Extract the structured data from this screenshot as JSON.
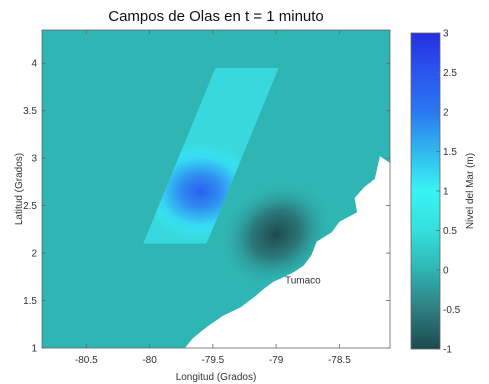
{
  "chart_data": {
    "type": "heatmap",
    "title": "Campos de Olas en t =  1 minuto",
    "xlabel": "Longitud (Grados)",
    "ylabel": "Latitud (Grados)",
    "xlim": [
      -80.85,
      -78.1
    ],
    "ylim": [
      1,
      4.35
    ],
    "x_ticks": [
      -80.5,
      -80,
      -79.5,
      -79,
      -78.5
    ],
    "x_tick_labels": [
      "-80.5",
      "-80",
      "-79.5",
      "-79",
      "-78.5"
    ],
    "y_ticks": [
      1,
      1.5,
      2,
      2.5,
      3,
      3.5,
      4
    ],
    "y_tick_labels": [
      "1",
      "1.5",
      "2",
      "2.5",
      "3",
      "3.5",
      "4"
    ],
    "annotations": [
      {
        "text": "Tumaco",
        "x": -78.93,
        "y": 1.68
      }
    ],
    "colorbar": {
      "label": "Nivel del Mar (m)",
      "range": [
        -1,
        3
      ],
      "ticks": [
        -1,
        -0.5,
        0,
        0.5,
        1,
        1.5,
        2,
        2.5,
        3
      ],
      "tick_labels": [
        "-1",
        "-0.5",
        "0",
        "0.5",
        "1",
        "1.5",
        "2",
        "2.5",
        "3"
      ],
      "colors": [
        "#1c4a4f",
        "#2f7d80",
        "#2fb5b3",
        "#33e0dc",
        "#38f4f4",
        "#30b8ee",
        "#2a78f0",
        "#2a55ef",
        "#2430e0"
      ]
    },
    "features": {
      "disturbed_band": [
        [
          -80.05,
          2.1
        ],
        [
          -79.55,
          2.1
        ],
        [
          -78.98,
          3.95
        ],
        [
          -79.48,
          3.95
        ]
      ],
      "coastline": [
        [
          -78.1,
          1.0
        ],
        [
          -78.1,
          2.95
        ],
        [
          -78.18,
          3.02
        ],
        [
          -78.22,
          2.78
        ],
        [
          -78.3,
          2.7
        ],
        [
          -78.38,
          2.58
        ],
        [
          -78.36,
          2.43
        ],
        [
          -78.5,
          2.33
        ],
        [
          -78.56,
          2.22
        ],
        [
          -78.68,
          2.12
        ],
        [
          -78.72,
          1.98
        ],
        [
          -78.78,
          1.87
        ],
        [
          -78.86,
          1.8
        ],
        [
          -78.95,
          1.74
        ],
        [
          -79.02,
          1.7
        ],
        [
          -79.1,
          1.62
        ],
        [
          -79.17,
          1.54
        ],
        [
          -79.28,
          1.43
        ],
        [
          -79.42,
          1.34
        ],
        [
          -79.55,
          1.22
        ],
        [
          -79.66,
          1.1
        ],
        [
          -79.72,
          1.0
        ]
      ],
      "crest": {
        "center": [
          -79.6,
          2.65
        ],
        "amplitude": 2.2
      },
      "trough": {
        "center": [
          -79.0,
          2.2
        ],
        "amplitude": -0.9
      }
    }
  }
}
